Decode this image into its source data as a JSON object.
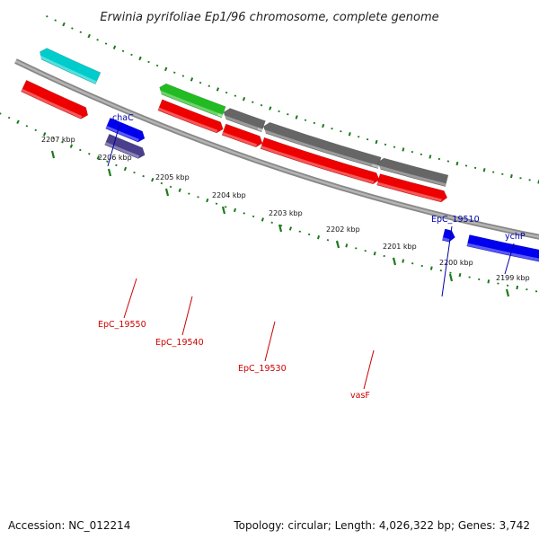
{
  "title": "Erwinia pyrifoliae Ep1/96 chromosome, complete genome",
  "footer": {
    "accession": "Accession: NC_012214",
    "topology": "Topology: circular; Length: 4,026,322 bp; Genes: 3,742"
  },
  "colors": {
    "backbone": "#888888",
    "tick": "#1a7a1a",
    "label_forward": "#0000aa",
    "label_reverse": "#cc0000",
    "red": "#ee0000",
    "blue": "#0000ee",
    "purple": "#4a3f8c",
    "cyan": "#00cccc",
    "green": "#22bb22",
    "gray": "#666666"
  },
  "ticks": [
    {
      "label": "2207 kbp"
    },
    {
      "label": "2206 kbp"
    },
    {
      "label": "2205 kbp"
    },
    {
      "label": "2204 kbp"
    },
    {
      "label": "2203 kbp"
    },
    {
      "label": "2202 kbp"
    },
    {
      "label": "2201 kbp"
    },
    {
      "label": "2200 kbp"
    },
    {
      "label": "2199 kbp"
    }
  ],
  "genes": [
    {
      "id": "g-red-left",
      "color": "red",
      "strand": "forward",
      "label": ""
    },
    {
      "id": "g-cyan-left",
      "color": "cyan",
      "strand": "reverse",
      "label": ""
    },
    {
      "id": "g-chaC",
      "color": "purple",
      "strand": "forward",
      "label": "chaC"
    },
    {
      "id": "g-blue-small",
      "color": "blue",
      "strand": "forward",
      "label": ""
    },
    {
      "id": "g-red-1",
      "color": "red",
      "strand": "forward",
      "label": ""
    },
    {
      "id": "g-EpC_19550",
      "color": "green",
      "strand": "reverse",
      "label": "EpC_19550"
    },
    {
      "id": "g-red-2",
      "color": "red",
      "strand": "forward",
      "label": ""
    },
    {
      "id": "g-EpC_19540",
      "color": "gray",
      "strand": "reverse",
      "label": "EpC_19540"
    },
    {
      "id": "g-red-3",
      "color": "red",
      "strand": "forward",
      "label": ""
    },
    {
      "id": "g-EpC_19530",
      "color": "gray",
      "strand": "reverse",
      "label": "EpC_19530"
    },
    {
      "id": "g-red-4",
      "color": "red",
      "strand": "forward",
      "label": ""
    },
    {
      "id": "g-vasF",
      "color": "gray",
      "strand": "reverse",
      "label": "vasF"
    },
    {
      "id": "g-EpC_19510",
      "color": "blue",
      "strand": "forward",
      "label": "EpC_19510"
    },
    {
      "id": "g-ychP",
      "color": "blue",
      "strand": "forward",
      "label": "ychP"
    }
  ]
}
